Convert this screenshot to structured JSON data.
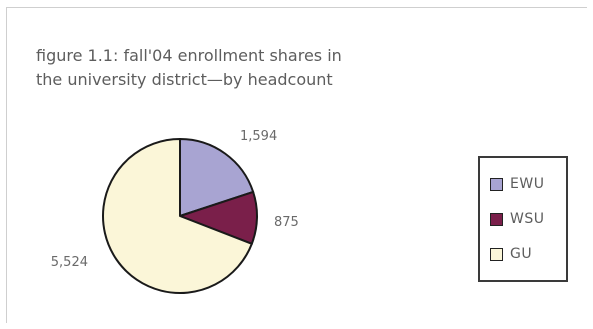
{
  "chart_data": {
    "type": "pie",
    "title": "figure 1.1: fall'04 enrollment shares in\nthe university district—by headcount",
    "slices": [
      {
        "name": "EWU",
        "value": 1594,
        "label": "1,594",
        "color": "#a8a4d2"
      },
      {
        "name": "WSU",
        "value": 875,
        "label": "875",
        "color": "#7a1f4a"
      },
      {
        "name": "GU",
        "value": 5524,
        "label": "5,524",
        "color": "#fbf6d8"
      }
    ],
    "start_angle_deg": 0,
    "direction": "clockwise",
    "legend": {
      "position": "right"
    }
  }
}
